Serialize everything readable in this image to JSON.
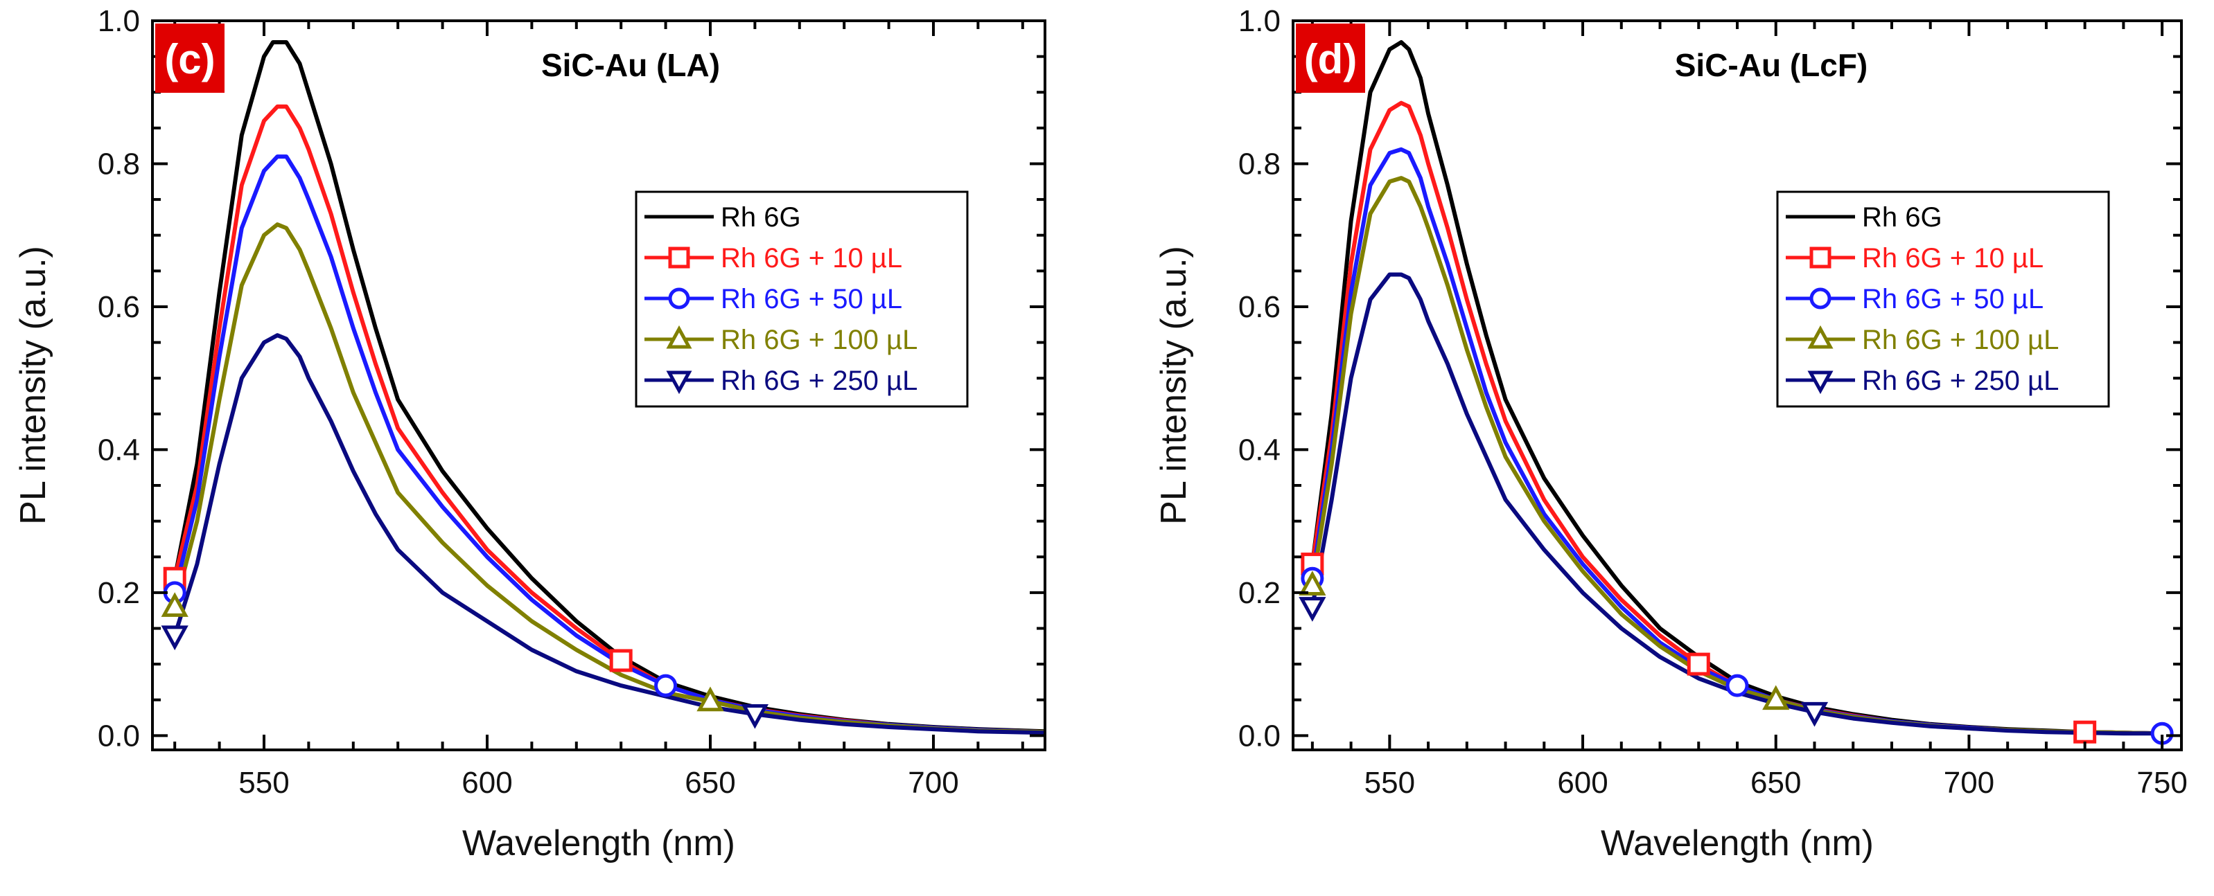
{
  "chart_data": [
    {
      "type": "line",
      "panel_label": "(c)",
      "panel_label_color": "#e00000",
      "title": "SiC-Au (LA)",
      "xlabel": "Wavelength (nm)",
      "ylabel": "PL intensity (a.u.)",
      "xlim": [
        525,
        725
      ],
      "ylim": [
        -0.02,
        1.0
      ],
      "xticks": [
        550,
        600,
        650,
        700
      ],
      "yticks": [
        0.0,
        0.2,
        0.4,
        0.6,
        0.8,
        1.0
      ],
      "xtick_labels": [
        "550",
        "600",
        "650",
        "700"
      ],
      "ytick_labels": [
        "0.0",
        "0.2",
        "0.4",
        "0.6",
        "0.8",
        "1.0"
      ],
      "legend_position": "upper-right",
      "series": [
        {
          "name": "Rh 6G",
          "color": "#000000",
          "marker": "none",
          "x": [
            530,
            535,
            540,
            545,
            550,
            552,
            555,
            558,
            560,
            565,
            570,
            575,
            580,
            590,
            600,
            610,
            620,
            630,
            640,
            650,
            660,
            670,
            680,
            690,
            700,
            710,
            725
          ],
          "y": [
            0.22,
            0.38,
            0.62,
            0.84,
            0.95,
            0.97,
            0.97,
            0.94,
            0.9,
            0.8,
            0.68,
            0.57,
            0.47,
            0.37,
            0.29,
            0.22,
            0.16,
            0.11,
            0.075,
            0.055,
            0.04,
            0.03,
            0.022,
            0.016,
            0.012,
            0.009,
            0.006
          ],
          "marker_x": []
        },
        {
          "name": "Rh 6G +   10 µL",
          "color": "#ff1a1a",
          "marker": "square",
          "x": [
            530,
            535,
            540,
            545,
            550,
            553,
            555,
            558,
            560,
            565,
            570,
            575,
            580,
            590,
            600,
            610,
            620,
            630,
            640,
            650,
            660,
            670,
            680,
            690,
            700,
            710,
            725
          ],
          "y": [
            0.22,
            0.35,
            0.57,
            0.77,
            0.86,
            0.88,
            0.88,
            0.85,
            0.82,
            0.73,
            0.62,
            0.52,
            0.43,
            0.34,
            0.26,
            0.2,
            0.15,
            0.105,
            0.07,
            0.05,
            0.037,
            0.028,
            0.021,
            0.015,
            0.011,
            0.008,
            0.005
          ],
          "marker_x": [
            530,
            630
          ]
        },
        {
          "name": "Rh 6G +   50 µL",
          "color": "#1a1aff",
          "marker": "circle",
          "x": [
            530,
            535,
            540,
            545,
            550,
            553,
            555,
            558,
            560,
            565,
            570,
            575,
            580,
            590,
            600,
            610,
            620,
            630,
            640,
            650,
            660,
            670,
            680,
            690,
            700,
            710,
            725
          ],
          "y": [
            0.2,
            0.33,
            0.53,
            0.71,
            0.79,
            0.81,
            0.81,
            0.78,
            0.75,
            0.67,
            0.57,
            0.48,
            0.4,
            0.32,
            0.25,
            0.19,
            0.14,
            0.1,
            0.07,
            0.05,
            0.036,
            0.027,
            0.02,
            0.015,
            0.011,
            0.008,
            0.005
          ],
          "marker_x": [
            530,
            640
          ]
        },
        {
          "name": "Rh 6G + 100 µL",
          "color": "#808000",
          "marker": "triangle-up",
          "x": [
            530,
            535,
            540,
            545,
            550,
            553,
            555,
            558,
            560,
            565,
            570,
            575,
            580,
            590,
            600,
            610,
            620,
            630,
            640,
            650,
            660,
            670,
            680,
            690,
            700,
            710,
            725
          ],
          "y": [
            0.18,
            0.3,
            0.47,
            0.63,
            0.7,
            0.715,
            0.71,
            0.68,
            0.65,
            0.57,
            0.48,
            0.41,
            0.34,
            0.27,
            0.21,
            0.16,
            0.12,
            0.085,
            0.06,
            0.048,
            0.034,
            0.025,
            0.019,
            0.014,
            0.01,
            0.007,
            0.005
          ],
          "marker_x": [
            530,
            650
          ]
        },
        {
          "name": "Rh 6G + 250 µL",
          "color": "#0a0a80",
          "marker": "triangle-down",
          "x": [
            530,
            535,
            540,
            545,
            550,
            553,
            555,
            558,
            560,
            565,
            570,
            575,
            580,
            590,
            600,
            610,
            620,
            630,
            640,
            650,
            660,
            670,
            680,
            690,
            700,
            710,
            725
          ],
          "y": [
            0.14,
            0.24,
            0.38,
            0.5,
            0.55,
            0.56,
            0.555,
            0.53,
            0.5,
            0.44,
            0.37,
            0.31,
            0.26,
            0.2,
            0.16,
            0.12,
            0.09,
            0.07,
            0.055,
            0.04,
            0.03,
            0.022,
            0.016,
            0.012,
            0.009,
            0.006,
            0.004
          ],
          "marker_x": [
            530,
            660
          ]
        }
      ]
    },
    {
      "type": "line",
      "panel_label": "(d)",
      "panel_label_color": "#e00000",
      "title": "SiC-Au (LcF)",
      "xlabel": "Wavelength (nm)",
      "ylabel": "PL intensity (a.u.)",
      "xlim": [
        525,
        755
      ],
      "ylim": [
        -0.02,
        1.0
      ],
      "xticks": [
        550,
        600,
        650,
        700,
        750
      ],
      "yticks": [
        0.0,
        0.2,
        0.4,
        0.6,
        0.8,
        1.0
      ],
      "xtick_labels": [
        "550",
        "600",
        "650",
        "700",
        "750"
      ],
      "ytick_labels": [
        "0.0",
        "0.2",
        "0.4",
        "0.6",
        "0.8",
        "1.0"
      ],
      "legend_position": "upper-right",
      "series": [
        {
          "name": "Rh 6G",
          "color": "#000000",
          "marker": "none",
          "x": [
            530,
            535,
            540,
            545,
            550,
            553,
            555,
            558,
            560,
            565,
            570,
            575,
            580,
            590,
            600,
            610,
            620,
            630,
            640,
            650,
            660,
            670,
            680,
            690,
            700,
            710,
            720,
            730,
            740,
            750
          ],
          "y": [
            0.24,
            0.45,
            0.72,
            0.9,
            0.96,
            0.97,
            0.96,
            0.92,
            0.87,
            0.77,
            0.66,
            0.56,
            0.47,
            0.36,
            0.28,
            0.21,
            0.15,
            0.11,
            0.075,
            0.055,
            0.04,
            0.03,
            0.022,
            0.016,
            0.012,
            0.009,
            0.007,
            0.005,
            0.004,
            0.003
          ],
          "marker_x": []
        },
        {
          "name": "Rh 6G +   10 µL",
          "color": "#ff1a1a",
          "marker": "square",
          "x": [
            530,
            535,
            540,
            545,
            550,
            553,
            555,
            558,
            560,
            565,
            570,
            575,
            580,
            590,
            600,
            610,
            620,
            630,
            640,
            650,
            660,
            670,
            680,
            690,
            700,
            710,
            720,
            730,
            740,
            750
          ],
          "y": [
            0.24,
            0.42,
            0.66,
            0.82,
            0.875,
            0.885,
            0.88,
            0.84,
            0.8,
            0.71,
            0.61,
            0.52,
            0.44,
            0.33,
            0.25,
            0.19,
            0.14,
            0.1,
            0.07,
            0.05,
            0.037,
            0.028,
            0.02,
            0.015,
            0.011,
            0.008,
            0.006,
            0.005,
            0.004,
            0.003
          ],
          "marker_x": [
            530,
            630,
            730
          ]
        },
        {
          "name": "Rh 6G +   50 µL",
          "color": "#1a1aff",
          "marker": "circle",
          "x": [
            530,
            535,
            540,
            545,
            550,
            553,
            555,
            558,
            560,
            565,
            570,
            575,
            580,
            590,
            600,
            610,
            620,
            630,
            640,
            650,
            660,
            670,
            680,
            690,
            700,
            710,
            720,
            730,
            740,
            750
          ],
          "y": [
            0.22,
            0.4,
            0.62,
            0.77,
            0.815,
            0.82,
            0.815,
            0.78,
            0.74,
            0.66,
            0.57,
            0.48,
            0.41,
            0.31,
            0.24,
            0.18,
            0.13,
            0.095,
            0.07,
            0.05,
            0.036,
            0.027,
            0.02,
            0.015,
            0.011,
            0.008,
            0.006,
            0.005,
            0.004,
            0.003
          ],
          "marker_x": [
            530,
            640,
            750
          ]
        },
        {
          "name": "Rh 6G + 100 µL",
          "color": "#808000",
          "marker": "triangle-up",
          "x": [
            530,
            535,
            540,
            545,
            550,
            553,
            555,
            558,
            560,
            565,
            570,
            575,
            580,
            590,
            600,
            610,
            620,
            630,
            640,
            650,
            660,
            670,
            680,
            690,
            700,
            710,
            720,
            730,
            740,
            750
          ],
          "y": [
            0.21,
            0.38,
            0.59,
            0.73,
            0.775,
            0.78,
            0.775,
            0.74,
            0.71,
            0.63,
            0.54,
            0.46,
            0.39,
            0.3,
            0.23,
            0.17,
            0.125,
            0.09,
            0.065,
            0.05,
            0.035,
            0.026,
            0.019,
            0.014,
            0.01,
            0.008,
            0.006,
            0.005,
            0.004,
            0.003
          ],
          "marker_x": [
            530,
            650
          ]
        },
        {
          "name": "Rh 6G + 250 µL",
          "color": "#0a0a80",
          "marker": "triangle-down",
          "x": [
            530,
            535,
            540,
            545,
            550,
            553,
            555,
            558,
            560,
            565,
            570,
            575,
            580,
            590,
            600,
            610,
            620,
            630,
            640,
            650,
            660,
            670,
            680,
            690,
            700,
            710,
            720,
            730,
            740,
            750
          ],
          "y": [
            0.18,
            0.33,
            0.5,
            0.61,
            0.645,
            0.645,
            0.64,
            0.61,
            0.58,
            0.52,
            0.45,
            0.39,
            0.33,
            0.26,
            0.2,
            0.15,
            0.11,
            0.08,
            0.06,
            0.045,
            0.033,
            0.024,
            0.018,
            0.013,
            0.01,
            0.007,
            0.005,
            0.004,
            0.003,
            0.003
          ],
          "marker_x": [
            530,
            660
          ]
        }
      ]
    }
  ]
}
